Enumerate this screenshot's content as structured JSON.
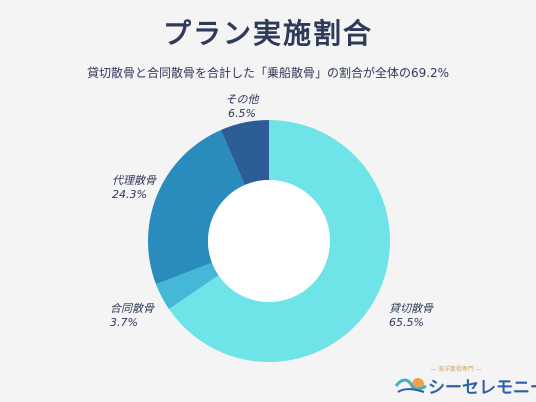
{
  "chart_data": {
    "type": "pie",
    "title": "プラン実施割合",
    "subtitle": "貸切散骨と合同散骨を合計した「乗船散骨」の割合が全体の69.2%",
    "slices": [
      {
        "label": "貸切散骨",
        "value": 65.5,
        "value_label": "65.5%",
        "color": "#6ee3e8"
      },
      {
        "label": "合同散骨",
        "value": 3.7,
        "value_label": "3.7%",
        "color": "#45b8d8"
      },
      {
        "label": "代理散骨",
        "value": 24.3,
        "value_label": "24.3%",
        "color": "#2a8bbd"
      },
      {
        "label": "その他",
        "value": 6.5,
        "value_label": "6.5%",
        "color": "#2d5d96"
      }
    ]
  },
  "logo": {
    "tagline": "— 海洋散骨専門 —",
    "name": "シーセレモニー"
  }
}
